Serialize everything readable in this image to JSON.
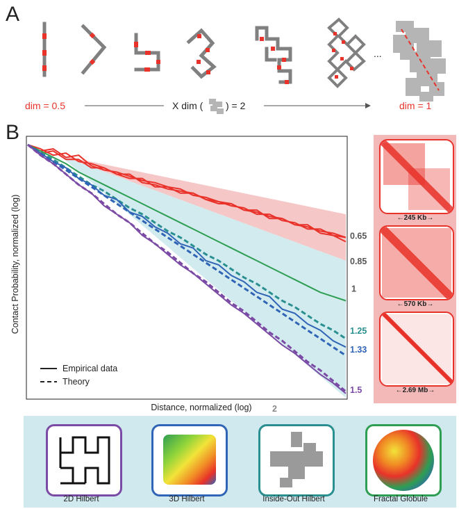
{
  "panel_a": {
    "letter": "A",
    "left_label": "dim = 0.5",
    "middle_label_pre": "X  dim (",
    "middle_label_post": ") = 2",
    "right_label": "dim = 1",
    "ellipsis": "..."
  },
  "panel_b": {
    "letter": "B"
  },
  "chart_data": {
    "type": "line",
    "xlabel": "Distance, normalized (log)",
    "ylabel": "Contact Probability, normalized (log)",
    "xscale": "log",
    "yscale": "log",
    "x": [
      0.0,
      0.04,
      0.08,
      0.12,
      0.16,
      0.2,
      0.24,
      0.28,
      0.32,
      0.36,
      0.4,
      0.44,
      0.48,
      0.52,
      0.56,
      0.6,
      0.64,
      0.68,
      0.72,
      0.76,
      0.8,
      0.84,
      0.88,
      0.92,
      0.96,
      1.0
    ],
    "x_unit_note": "",
    "series": [
      {
        "name": "",
        "style": "solid",
        "color": "#e8322a",
        "values": [
          0.0,
          -0.03,
          -0.02,
          -0.06,
          -0.05,
          -0.1,
          -0.12,
          -0.13,
          -0.15,
          -0.17,
          -0.18,
          -0.2,
          -0.21,
          -0.24,
          -0.25,
          -0.27,
          -0.28,
          -0.31,
          -0.32,
          -0.34,
          -0.35,
          -0.38,
          -0.39,
          -0.41,
          -0.42,
          -0.44
        ]
      },
      {
        "name": "",
        "style": "solid",
        "color": "#e8322a",
        "values": [
          0.0,
          -0.02,
          -0.05,
          -0.04,
          -0.08,
          -0.09,
          -0.11,
          -0.14,
          -0.14,
          -0.18,
          -0.19,
          -0.21,
          -0.22,
          -0.23,
          -0.26,
          -0.27,
          -0.29,
          -0.3,
          -0.33,
          -0.33,
          -0.36,
          -0.37,
          -0.4,
          -0.4,
          -0.43,
          -0.44
        ]
      },
      {
        "name": "",
        "style": "solid",
        "color": "#e8322a",
        "values": [
          0.0,
          -0.04,
          -0.03,
          -0.07,
          -0.07,
          -0.11,
          -0.11,
          -0.14,
          -0.16,
          -0.16,
          -0.2,
          -0.2,
          -0.23,
          -0.23,
          -0.26,
          -0.28,
          -0.28,
          -0.31,
          -0.31,
          -0.35,
          -0.35,
          -0.38,
          -0.38,
          -0.42,
          -0.43,
          -0.46
        ]
      },
      {
        "name": "",
        "style": "solid",
        "color": "#2e9e53",
        "values": [
          0.0,
          -0.03,
          -0.06,
          -0.09,
          -0.13,
          -0.16,
          -0.19,
          -0.22,
          -0.25,
          -0.28,
          -0.31,
          -0.34,
          -0.37,
          -0.4,
          -0.43,
          -0.46,
          -0.49,
          -0.52,
          -0.55,
          -0.58,
          -0.61,
          -0.64,
          -0.67,
          -0.7,
          -0.72,
          -0.74
        ]
      },
      {
        "name": "",
        "style": "dashed",
        "color": "#2a8f90",
        "values": [
          0.0,
          -0.04,
          -0.07,
          -0.11,
          -0.15,
          -0.19,
          -0.22,
          -0.26,
          -0.3,
          -0.33,
          -0.37,
          -0.41,
          -0.44,
          -0.48,
          -0.52,
          -0.55,
          -0.59,
          -0.63,
          -0.66,
          -0.7,
          -0.74,
          -0.77,
          -0.81,
          -0.85,
          -0.88,
          -0.92
        ]
      },
      {
        "name": "",
        "style": "solid",
        "color": "#2f64b6",
        "values": [
          0.0,
          -0.04,
          -0.08,
          -0.11,
          -0.16,
          -0.19,
          -0.24,
          -0.26,
          -0.32,
          -0.34,
          -0.39,
          -0.42,
          -0.47,
          -0.49,
          -0.55,
          -0.57,
          -0.62,
          -0.65,
          -0.7,
          -0.72,
          -0.78,
          -0.8,
          -0.85,
          -0.88,
          -0.93,
          -0.96
        ]
      },
      {
        "name": "",
        "style": "dashed",
        "color": "#2f64b6",
        "values": [
          0.0,
          -0.04,
          -0.08,
          -0.12,
          -0.16,
          -0.2,
          -0.24,
          -0.28,
          -0.32,
          -0.36,
          -0.4,
          -0.44,
          -0.48,
          -0.52,
          -0.56,
          -0.6,
          -0.64,
          -0.68,
          -0.72,
          -0.76,
          -0.8,
          -0.84,
          -0.88,
          -0.92,
          -0.96,
          -1.0
        ]
      },
      {
        "name": "",
        "style": "solid",
        "color": "#7a4aa5",
        "values": [
          0.0,
          -0.05,
          -0.09,
          -0.14,
          -0.19,
          -0.23,
          -0.29,
          -0.33,
          -0.37,
          -0.43,
          -0.47,
          -0.52,
          -0.57,
          -0.61,
          -0.66,
          -0.71,
          -0.76,
          -0.8,
          -0.85,
          -0.9,
          -0.95,
          -0.99,
          -1.04,
          -1.09,
          -1.13,
          -1.18
        ]
      },
      {
        "name": "",
        "style": "dashed",
        "color": "#7a4aa5",
        "values": [
          0.0,
          -0.05,
          -0.09,
          -0.14,
          -0.19,
          -0.23,
          -0.28,
          -0.33,
          -0.37,
          -0.42,
          -0.47,
          -0.51,
          -0.56,
          -0.61,
          -0.65,
          -0.7,
          -0.75,
          -0.79,
          -0.84,
          -0.89,
          -0.93,
          -0.98,
          -1.03,
          -1.07,
          -1.12,
          -1.17
        ]
      }
    ],
    "bands": [
      {
        "color": "#f4b9b9",
        "upper": -0.33,
        "lower": -0.55
      },
      {
        "color": "#c7e6ea",
        "upper": -0.55,
        "lower": -1.2
      }
    ],
    "slope_labels": [
      {
        "text": "0.65",
        "color": "#555555"
      },
      {
        "text": "0.85",
        "color": "#555555"
      },
      {
        "text": "1",
        "color": "#555555"
      },
      {
        "text": "1.25",
        "color": "#2a8f90"
      },
      {
        "text": "1.33",
        "color": "#2f64b6"
      },
      {
        "text": "1.5",
        "color": "#7a4aa5"
      },
      {
        "text": "2",
        "color": "#888888"
      }
    ],
    "legend": {
      "placement": "bottom-left",
      "items": [
        {
          "label": "Empirical data",
          "style": "solid"
        },
        {
          "label": "Theory",
          "style": "dashed"
        }
      ]
    }
  },
  "hic_maps": [
    {
      "scale_label": "245 Kb"
    },
    {
      "scale_label": "570 Kb"
    },
    {
      "scale_label": "2.69 Mb"
    }
  ],
  "structures": [
    {
      "caption": "2D Hilbert",
      "border": "#7a4aa5"
    },
    {
      "caption": "3D Hilbert",
      "border": "#2f64b6"
    },
    {
      "caption": "Inside-Out Hilbert",
      "border": "#2a8f90"
    },
    {
      "caption": "Fractal Globule",
      "border": "#2e9e53"
    }
  ]
}
